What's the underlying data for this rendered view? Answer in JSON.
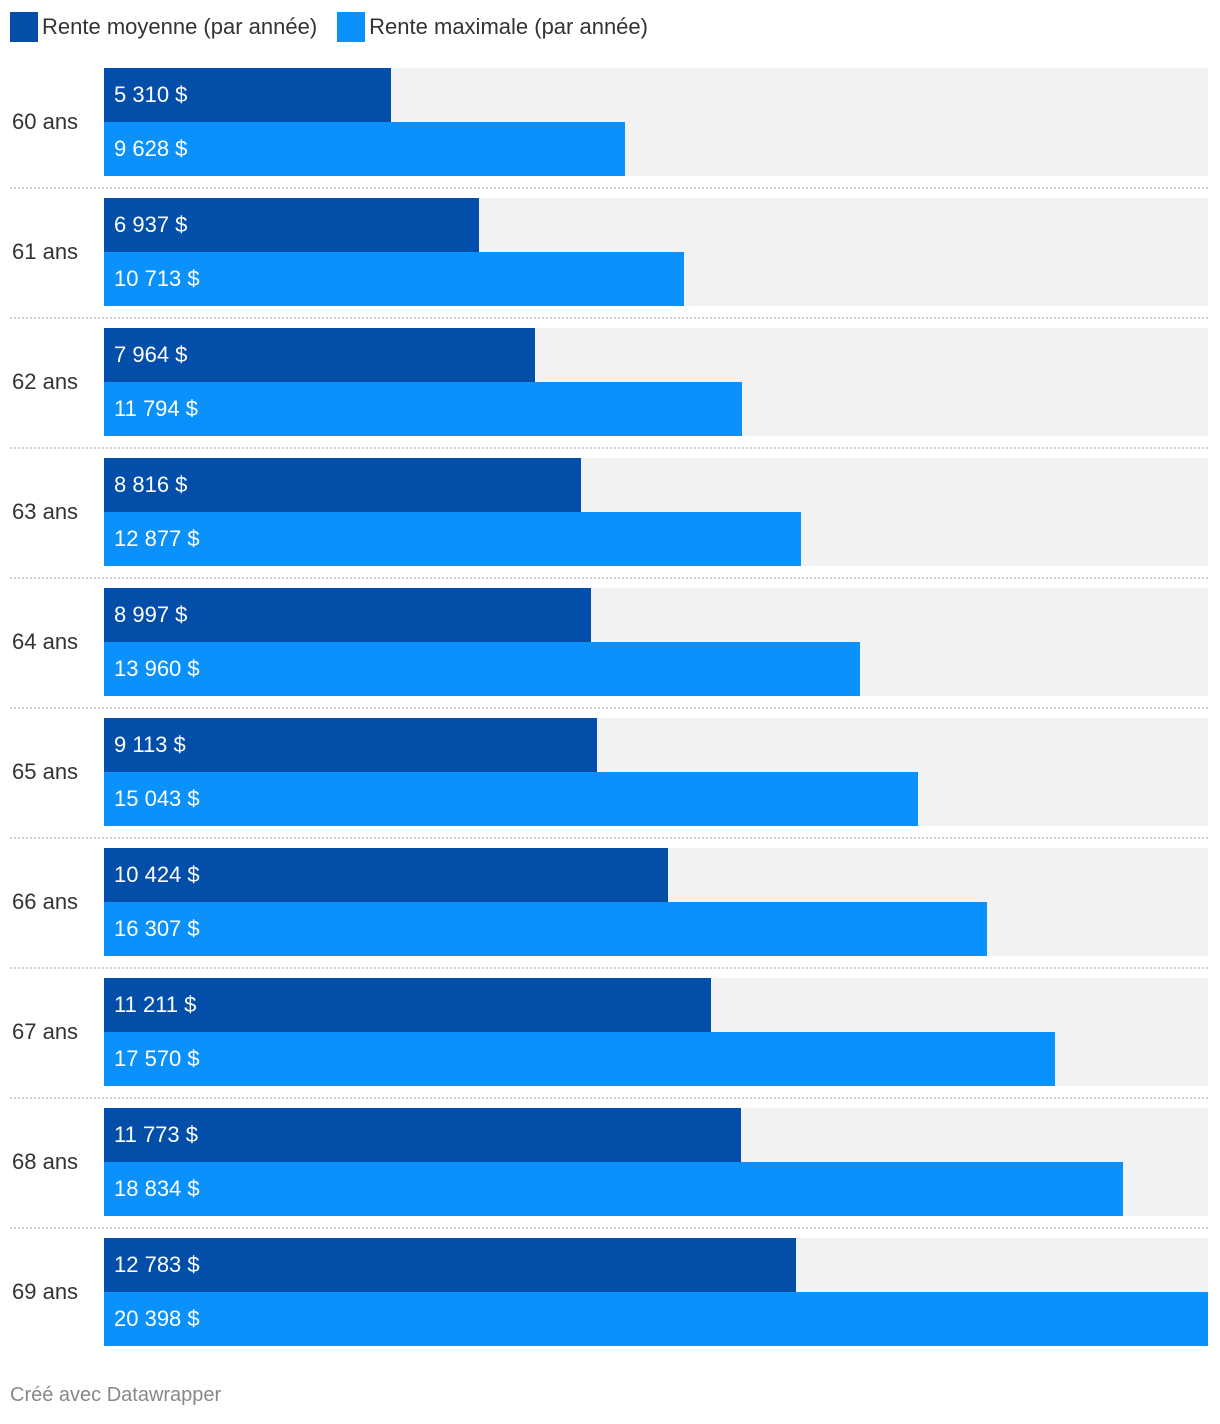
{
  "chart_data": {
    "type": "bar",
    "orientation": "horizontal",
    "categories": [
      "60 ans",
      "61 ans",
      "62 ans",
      "63 ans",
      "64 ans",
      "65 ans",
      "66 ans",
      "67 ans",
      "68 ans",
      "69 ans"
    ],
    "series": [
      {
        "name": "Rente moyenne (par année)",
        "color": "#034ea9",
        "values": [
          5310,
          6937,
          7964,
          8816,
          8997,
          9113,
          10424,
          11211,
          11773,
          12783
        ],
        "labels": [
          "5 310 $",
          "6 937 $",
          "7 964 $",
          "8 816 $",
          "8 997 $",
          "9 113 $",
          "10 424 $",
          "11 211 $",
          "11 773 $",
          "12 783 $"
        ]
      },
      {
        "name": "Rente maximale (par année)",
        "color": "#0a91fb",
        "values": [
          9628,
          10713,
          11794,
          12877,
          13960,
          15043,
          16307,
          17570,
          18834,
          20398
        ],
        "labels": [
          "9 628 $",
          "10 713 $",
          "11 794 $",
          "12 877 $",
          "13 960 $",
          "15 043 $",
          "16 307 $",
          "17 570 $",
          "18 834 $",
          "20 398 $"
        ]
      }
    ],
    "xlim": [
      0,
      20398
    ],
    "track_color": "#f2f2f2",
    "legend_position": "top-left",
    "grid": false
  },
  "footer": "Créé avec Datawrapper"
}
